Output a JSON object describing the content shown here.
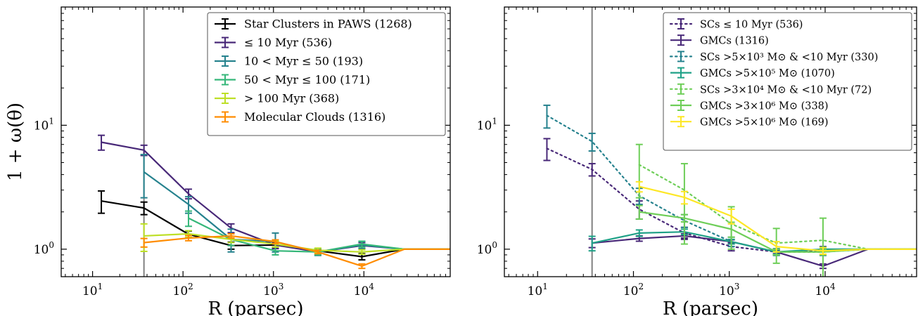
{
  "chart_data": [
    {
      "type": "line",
      "xscale": "log",
      "yscale": "log",
      "xlim": [
        4.5,
        90000
      ],
      "ylim": [
        0.6,
        90
      ],
      "xlabel": "R (parsec)",
      "ylabel": "1 + ω(θ)",
      "xticks": [
        {
          "value": 10,
          "base": "10",
          "exp": "1"
        },
        {
          "value": 100,
          "base": "10",
          "exp": "2"
        },
        {
          "value": 1000,
          "base": "10",
          "exp": "3"
        },
        {
          "value": 10000,
          "base": "10",
          "exp": "4"
        }
      ],
      "yticks": [
        {
          "value": 1,
          "base": "10",
          "exp": "0"
        },
        {
          "value": 10,
          "base": "10",
          "exp": "1"
        }
      ],
      "vline": 37,
      "grid": false,
      "legend_position": "top-right",
      "series": [
        {
          "name": "Star Clusters in PAWS (1268)",
          "color": "#000000",
          "style": "solid",
          "x": [
            12.5,
            37,
            115,
            340,
            1050,
            3100,
            9500,
            28000,
            90000
          ],
          "y": [
            2.45,
            2.15,
            1.32,
            1.07,
            1.08,
            0.97,
            0.87,
            1.0,
            1.0
          ],
          "err": [
            0.5,
            0.25,
            0.08,
            0.07,
            0.06,
            0.04,
            0.05,
            null,
            null
          ]
        },
        {
          "name": "≤ 10 Myr (536)",
          "color": "#482878",
          "style": "solid",
          "x": [
            12.5,
            37,
            115,
            340,
            1050,
            3100,
            9500,
            28000,
            90000
          ],
          "y": [
            7.3,
            6.3,
            2.8,
            1.48,
            1.08,
            0.95,
            1.07,
            1.0,
            1.0
          ],
          "err": [
            1.0,
            0.6,
            0.25,
            0.12,
            0.07,
            0.05,
            0.06,
            null,
            null
          ]
        },
        {
          "name": "10 < Myr ≤ 50 (193)",
          "color": "#26828e",
          "style": "solid",
          "x": [
            37,
            115,
            340,
            1050,
            3100,
            9500,
            28000,
            90000
          ],
          "y": [
            4.2,
            2.3,
            1.2,
            1.15,
            0.95,
            1.08,
            1.0,
            1.0
          ],
          "err": [
            1.6,
            0.35,
            0.25,
            0.2,
            0.06,
            0.07,
            null,
            null
          ]
        },
        {
          "name": "50 < Myr ≤ 100 (171)",
          "color": "#35b779",
          "style": "solid",
          "x": [
            115,
            340,
            1050,
            3100,
            9500,
            28000,
            90000
          ],
          "y": [
            1.78,
            1.2,
            0.97,
            0.95,
            1.1,
            1.0,
            1.0
          ],
          "err": [
            0.25,
            0.13,
            0.07,
            0.05,
            0.06,
            null,
            null
          ]
        },
        {
          "name": "> 100 Myr (368)",
          "color": "#bddf26",
          "style": "solid",
          "x": [
            37,
            115,
            340,
            1050,
            3100,
            9500,
            28000,
            90000
          ],
          "y": [
            1.28,
            1.33,
            1.2,
            1.1,
            0.98,
            0.95,
            1.0,
            1.0
          ],
          "err": [
            0.32,
            0.08,
            0.07,
            0.06,
            0.04,
            0.04,
            null,
            null
          ]
        },
        {
          "name": "Molecular Clouds (1316)",
          "color": "#ff8c00",
          "style": "solid",
          "x": [
            37,
            115,
            340,
            1050,
            3100,
            9500,
            28000,
            90000
          ],
          "y": [
            1.13,
            1.23,
            1.28,
            1.15,
            0.95,
            0.73,
            1.0,
            1.0
          ],
          "err": [
            0.09,
            0.06,
            0.05,
            0.04,
            0.03,
            0.03,
            null,
            null
          ]
        }
      ]
    },
    {
      "type": "line",
      "xscale": "log",
      "yscale": "log",
      "xlim": [
        4.5,
        90000
      ],
      "ylim": [
        0.6,
        90
      ],
      "xlabel": "R (parsec)",
      "ylabel": "",
      "xticks": [
        {
          "value": 10,
          "base": "10",
          "exp": "1"
        },
        {
          "value": 100,
          "base": "10",
          "exp": "2"
        },
        {
          "value": 1000,
          "base": "10",
          "exp": "3"
        },
        {
          "value": 10000,
          "base": "10",
          "exp": "4"
        }
      ],
      "yticks": [
        {
          "value": 1,
          "base": "10",
          "exp": "0"
        },
        {
          "value": 10,
          "base": "10",
          "exp": "1"
        }
      ],
      "vline": 37,
      "grid": false,
      "legend_position": "top-right",
      "series": [
        {
          "name": "SCs ≤ 10 Myr (536)",
          "color": "#482878",
          "style": "dotted",
          "x": [
            12.5,
            37,
            115,
            340,
            1050,
            3100,
            9500,
            28000,
            90000
          ],
          "y": [
            6.5,
            4.4,
            2.1,
            1.35,
            1.05,
            0.95,
            0.98,
            1.0,
            1.0
          ],
          "err": [
            1.3,
            0.5,
            0.35,
            0.15,
            0.08,
            0.05,
            0.07,
            null,
            null
          ]
        },
        {
          "name": "GMCs (1316)",
          "color": "#482878",
          "style": "solid",
          "x": [
            37,
            115,
            340,
            1050,
            3100,
            9500,
            28000,
            90000
          ],
          "y": [
            1.12,
            1.22,
            1.28,
            1.15,
            0.95,
            0.73,
            1.0,
            1.0
          ],
          "err": [
            0.09,
            0.06,
            0.05,
            0.04,
            0.03,
            0.03,
            null,
            null
          ]
        },
        {
          "name": "SCs >5×10³ M⊙ & <10 Myr (330)",
          "color": "#26828e",
          "style": "dotted",
          "x": [
            12.5,
            37,
            115,
            340,
            1050,
            3100,
            9500,
            28000,
            90000
          ],
          "y": [
            12.0,
            7.4,
            2.7,
            1.7,
            1.15,
            0.95,
            0.95,
            1.0,
            1.0
          ],
          "err": [
            2.5,
            1.2,
            0.4,
            0.2,
            0.1,
            0.06,
            0.06,
            null,
            null
          ]
        },
        {
          "name": "GMCs >5×10⁵ M⊙ (1070)",
          "color": "#1fa187",
          "style": "solid",
          "x": [
            37,
            115,
            340,
            1050,
            3100,
            9500,
            28000,
            90000
          ],
          "y": [
            1.12,
            1.35,
            1.38,
            1.15,
            0.95,
            1.0,
            1.0,
            1.0
          ],
          "err": [
            0.15,
            0.08,
            0.07,
            0.05,
            0.04,
            0.04,
            null,
            null
          ]
        },
        {
          "name": "SCs >3×10⁴ M⊙ & <10 Myr (72)",
          "color": "#6ece58",
          "style": "dotted",
          "x": [
            115,
            340,
            1050,
            3100,
            9500,
            28000,
            90000
          ],
          "y": [
            4.8,
            3.0,
            1.6,
            1.12,
            1.18,
            1.0,
            1.0
          ],
          "err": [
            2.2,
            1.9,
            0.6,
            0.35,
            0.6,
            null,
            null
          ]
        },
        {
          "name": "GMCs >3×10⁶ M⊙ (338)",
          "color": "#6ece58",
          "style": "solid",
          "x": [
            115,
            340,
            1050,
            3100,
            9500,
            28000,
            90000
          ],
          "y": [
            2.0,
            1.78,
            1.45,
            0.95,
            0.95,
            1.0,
            1.0
          ],
          "err": [
            0.25,
            0.12,
            0.2,
            0.05,
            0.05,
            null,
            null
          ]
        },
        {
          "name": "GMCs >5×10⁶ M⊙ (169)",
          "color": "#fde725",
          "style": "solid",
          "x": [
            115,
            340,
            1050,
            3100,
            9500,
            28000,
            90000
          ],
          "y": [
            3.2,
            2.62,
            1.85,
            1.05,
            0.97,
            1.0,
            1.0
          ],
          "err": [
            0.3,
            0.3,
            0.25,
            0.1,
            0.06,
            null,
            null
          ]
        }
      ]
    }
  ]
}
